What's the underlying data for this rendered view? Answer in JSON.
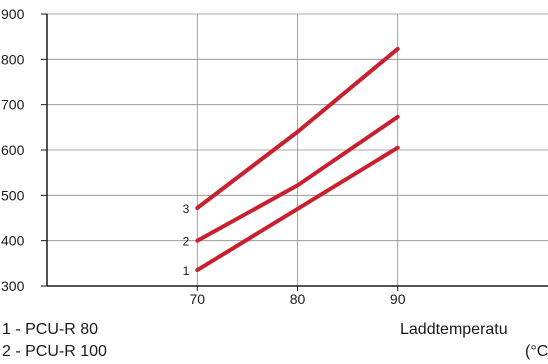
{
  "chart_data": {
    "type": "line",
    "title": "",
    "xlabel": "Laddtemperatu",
    "xunit": "(°C",
    "ylabel": "",
    "xlim": [
      55,
      105
    ],
    "ylim": [
      300,
      900
    ],
    "xticks": [
      70,
      80,
      90
    ],
    "yticks": [
      300,
      400,
      500,
      600,
      700,
      800,
      900
    ],
    "grid": true,
    "line_color": "#c8202f",
    "series": [
      {
        "name": "1",
        "x": [
          70,
          80,
          90
        ],
        "values": [
          335,
          470,
          605
        ]
      },
      {
        "name": "2",
        "x": [
          70,
          80,
          90
        ],
        "values": [
          400,
          522,
          673
        ]
      },
      {
        "name": "3",
        "x": [
          70,
          80,
          90
        ],
        "values": [
          472,
          640,
          823
        ]
      }
    ],
    "legend": [
      "1 - PCU-R 80",
      "2 - PCU-R 100"
    ]
  }
}
